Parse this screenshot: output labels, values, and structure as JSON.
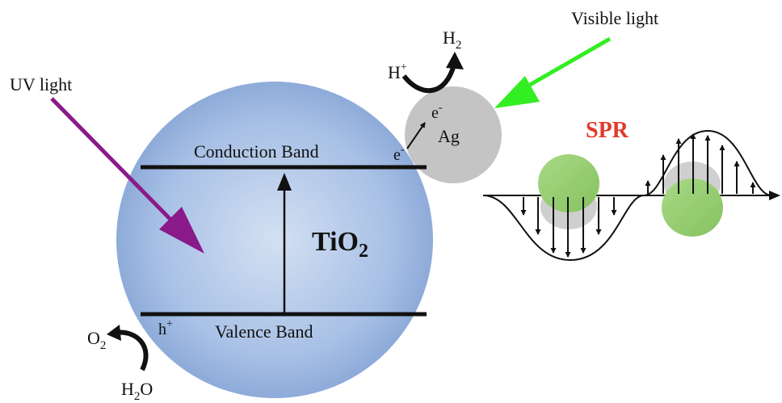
{
  "labels": {
    "uv_light": "UV light",
    "visible_light": "Visible light",
    "conduction_band": "Conduction Band",
    "valence_band": "Valence Band",
    "tio2_base": "TiO",
    "tio2_sub": "2",
    "ag": "Ag",
    "spr": "SPR",
    "electron_band": "e",
    "electron_ag": "e",
    "electron_sup": "-",
    "hole": "h",
    "hole_sup": "+",
    "proton": "H",
    "proton_sup": "+",
    "h2_base": "H",
    "h2_sub": "2",
    "o2_base": "O",
    "o2_sub": "2",
    "h2o_h": "H",
    "h2o_sub": "2",
    "h2o_o": "O"
  },
  "colors": {
    "tio2_fill_center": "#c9d9ef",
    "tio2_fill_edge": "#7f9fd2",
    "ag_fill": "#c6c6c6",
    "uv_arrow": "#8a1a8a",
    "visible_arrow": "#33ee22",
    "spr_text": "#e03a2a",
    "particle_green": "#97cf6f",
    "particle_shadow": "#cfcfcf",
    "line": "#111111"
  },
  "icons": [
    "curved-arrow-icon",
    "arrow-icon"
  ]
}
